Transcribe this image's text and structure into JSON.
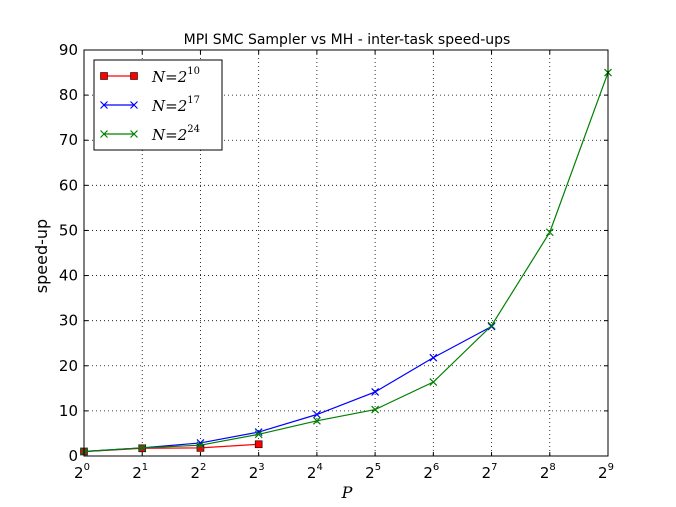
{
  "chart_data": {
    "type": "line",
    "title": "MPI SMC Sampler vs MH - inter-task speed-ups",
    "xlabel": "P",
    "ylabel": "speed-up",
    "x_scale": "log2",
    "xlim": [
      1,
      512
    ],
    "ylim": [
      0,
      90
    ],
    "x_ticks": [
      {
        "base": "2",
        "exp": "0"
      },
      {
        "base": "2",
        "exp": "1"
      },
      {
        "base": "2",
        "exp": "2"
      },
      {
        "base": "2",
        "exp": "3"
      },
      {
        "base": "2",
        "exp": "4"
      },
      {
        "base": "2",
        "exp": "5"
      },
      {
        "base": "2",
        "exp": "6"
      },
      {
        "base": "2",
        "exp": "7"
      },
      {
        "base": "2",
        "exp": "8"
      },
      {
        "base": "2",
        "exp": "9"
      }
    ],
    "y_ticks": [
      "0",
      "10",
      "20",
      "30",
      "40",
      "50",
      "60",
      "70",
      "80",
      "90"
    ],
    "grid": true,
    "legend_position": "top-left",
    "series": [
      {
        "name_base": "N=2",
        "name_exp": "10",
        "color": "#ff0000",
        "marker": "square",
        "x": [
          1,
          2,
          4,
          8
        ],
        "y": [
          1.0,
          1.7,
          1.8,
          2.6
        ]
      },
      {
        "name_base": "N=2",
        "name_exp": "17",
        "color": "#0000ff",
        "marker": "x",
        "x": [
          1,
          2,
          4,
          8,
          16,
          32,
          64,
          128
        ],
        "y": [
          1.0,
          1.8,
          2.9,
          5.3,
          9.2,
          14.2,
          21.8,
          28.7
        ]
      },
      {
        "name_base": "N=2",
        "name_exp": "24",
        "color": "#008000",
        "marker": "x",
        "x": [
          1,
          2,
          4,
          8,
          16,
          32,
          64,
          128,
          256,
          512
        ],
        "y": [
          1.0,
          1.8,
          2.4,
          4.8,
          7.8,
          10.3,
          16.4,
          28.9,
          49.6,
          85.0
        ]
      }
    ]
  }
}
